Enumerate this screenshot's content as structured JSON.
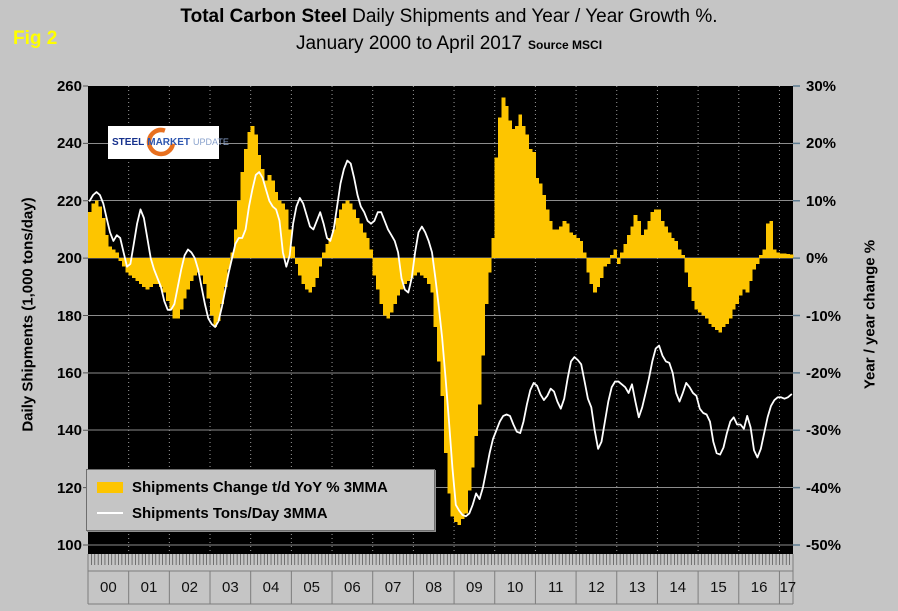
{
  "fig_label": "Fig 2",
  "header": {
    "title_bold": "Total Carbon Steel",
    "title_rest": " Daily Shipments and Year / Year Growth %.",
    "subtitle": "January 2000 to April 2017",
    "source": "Source MSCI"
  },
  "logo": {
    "word1": "STEEL",
    "word2": "MARKET",
    "word3": "UPDATE"
  },
  "legend": {
    "items": [
      {
        "label": "Shipments Change t/d YoY % 3MMA",
        "type": "bar",
        "color": "#fdc500"
      },
      {
        "label": "Shipments Tons/Day 3MMA",
        "type": "line",
        "color": "#ffffff"
      }
    ]
  },
  "colors": {
    "background": "#c5c5c5",
    "plot_background": "#000000",
    "bar": "#fdc500",
    "line": "#ffffff",
    "gridline": "#8c8c8c",
    "fig_label": "#ffff00",
    "right_tick_mark": "#5f7d92"
  },
  "chart_data": {
    "type": "combo",
    "title": "Total Carbon Steel Daily Shipments and Year / Year Growth %.",
    "subtitle": "January 2000 to April 2017",
    "source": "Source MSCI",
    "x_start": "2000-01",
    "x_end": "2017-04",
    "x_interval": "monthly",
    "x_year_labels": [
      "00",
      "01",
      "02",
      "03",
      "04",
      "05",
      "06",
      "07",
      "08",
      "09",
      "10",
      "11",
      "12",
      "13",
      "14",
      "15",
      "16",
      "17"
    ],
    "left_axis": {
      "title": "Daily Shipments (1,000 tons/day)",
      "min": 100,
      "max": 260,
      "tick_step": 20,
      "ticks": [
        "260",
        "240",
        "220",
        "200",
        "180",
        "160",
        "140",
        "120",
        "100"
      ]
    },
    "right_axis": {
      "title": "Year / year change %",
      "min": -50,
      "max": 30,
      "tick_step": 10,
      "ticks": [
        "30%",
        "20%",
        "10%",
        "0%",
        "-10%",
        "-20%",
        "-30%",
        "-40%",
        "-50%"
      ]
    },
    "grid": {
      "horizontal_solid": true,
      "vertical_yearly_dotted": true,
      "legend_position": "bottom-left-inside"
    },
    "series": [
      {
        "name": "Shipments Change t/d YoY % 3MMA",
        "type": "bar",
        "axis": "right",
        "color": "#fdc500",
        "unit": "%",
        "values": [
          8,
          9.5,
          10,
          9,
          7,
          4,
          2,
          1.5,
          1,
          -0.5,
          -1.5,
          -2.5,
          -3,
          -3.5,
          -4,
          -4.5,
          -5,
          -5.5,
          -5,
          -4.5,
          -4.5,
          -5,
          -6,
          -7.5,
          -9,
          -10.5,
          -10.5,
          -9,
          -7,
          -5.5,
          -4,
          -3,
          -2.5,
          -3,
          -4.5,
          -7,
          -10,
          -12,
          -11,
          -8,
          -5,
          -2,
          1,
          5,
          10,
          15,
          19,
          22,
          23,
          21.5,
          18,
          15.5,
          13.5,
          14.5,
          13.5,
          11.5,
          10,
          9.5,
          8.5,
          5,
          2,
          -1,
          -3,
          -4.5,
          -5.5,
          -6,
          -5,
          -3.5,
          -1.5,
          1,
          2.5,
          3.5,
          5,
          7,
          8.5,
          9.5,
          10,
          9.5,
          8.5,
          7,
          6,
          4.5,
          3.5,
          1.5,
          -3,
          -5.5,
          -8,
          -10,
          -10.5,
          -9.5,
          -8,
          -6.5,
          -5.5,
          -4.5,
          -4,
          -3.5,
          -3,
          -2.5,
          -3,
          -3.5,
          -4.5,
          -6,
          -12,
          -18,
          -24,
          -34,
          -41,
          -45,
          -46,
          -46.5,
          -45.5,
          -44.5,
          -40.5,
          -36.5,
          -31,
          -25.5,
          -17,
          -8,
          -2.5,
          3.5,
          17.5,
          24.5,
          28,
          26.5,
          24,
          22.5,
          23,
          25,
          23,
          21.5,
          19,
          18.5,
          14,
          13,
          11,
          8.5,
          6.5,
          5,
          5,
          5.5,
          6.5,
          6,
          4.5,
          4,
          3.5,
          3,
          1,
          -2.5,
          -4.5,
          -6,
          -5,
          -3.5,
          -1.5,
          -1,
          0.5,
          1.5,
          -1,
          1,
          2.5,
          4,
          5.5,
          7.5,
          6.5,
          4,
          5,
          6.5,
          8,
          8.5,
          8.5,
          6.5,
          5.5,
          4.5,
          3.5,
          3,
          1.5,
          0.5,
          -2.5,
          -5,
          -7.5,
          -9,
          -9.5,
          -10,
          -10.5,
          -11.5,
          -12,
          -12.5,
          -13,
          -12,
          -11.5,
          -10.5,
          -9,
          -8,
          -6.5,
          -5.5,
          -6,
          -4,
          -2,
          -1,
          0.5,
          1.5,
          6,
          6.5,
          1.5,
          1,
          0.8,
          0.8,
          0.7,
          0.6
        ]
      },
      {
        "name": "Shipments Tons/Day 3MMA",
        "type": "line",
        "axis": "left",
        "color": "#ffffff",
        "unit": "1,000 tons/day",
        "values": [
          220,
          222,
          223,
          222,
          219,
          214,
          209,
          206,
          208,
          207,
          202,
          197,
          198,
          205,
          212,
          217,
          214,
          207,
          200,
          196,
          193,
          190,
          185,
          182,
          182,
          184,
          190,
          196,
          201,
          203,
          202,
          200,
          196,
          190,
          184,
          179,
          177,
          176,
          178,
          183,
          189,
          195,
          200,
          205,
          207,
          207,
          210,
          218,
          224,
          229,
          230,
          228,
          224,
          220,
          218,
          217,
          213,
          202,
          197,
          201,
          212,
          218,
          221,
          219,
          215,
          211,
          210,
          213,
          216,
          212,
          207,
          206,
          210,
          218,
          226,
          231,
          234,
          233,
          228,
          222,
          218,
          216,
          213,
          212,
          213,
          216,
          216,
          213,
          210,
          208,
          206,
          202,
          193,
          189,
          188,
          193,
          202,
          209,
          211,
          209,
          206,
          202,
          193,
          183,
          172,
          158,
          143,
          127,
          114,
          112,
          110.5,
          110,
          111,
          114,
          118,
          116,
          120,
          126,
          132,
          137,
          140,
          143,
          145,
          145.5,
          145,
          142,
          139.5,
          139,
          143,
          149,
          154,
          156.5,
          155.5,
          152.5,
          150.5,
          152,
          154.5,
          153.5,
          150,
          147.5,
          151,
          158,
          164,
          165.5,
          164.5,
          163,
          157,
          151,
          148,
          140,
          133.5,
          136,
          143,
          150,
          155,
          157,
          157,
          156,
          155,
          153,
          156,
          150,
          144.5,
          148,
          153,
          158,
          164,
          168.5,
          169.5,
          166,
          164,
          163.5,
          160,
          153,
          150,
          153,
          156.5,
          155,
          153,
          152,
          147.5,
          146,
          145.5,
          143,
          136,
          132,
          131.5,
          134,
          139,
          143,
          144.5,
          142,
          142,
          140.5,
          145,
          141,
          133,
          130.5,
          133.5,
          139,
          144.5,
          148.5,
          150.5,
          151.5,
          151.5,
          151,
          151.5,
          152.5
        ]
      }
    ]
  }
}
